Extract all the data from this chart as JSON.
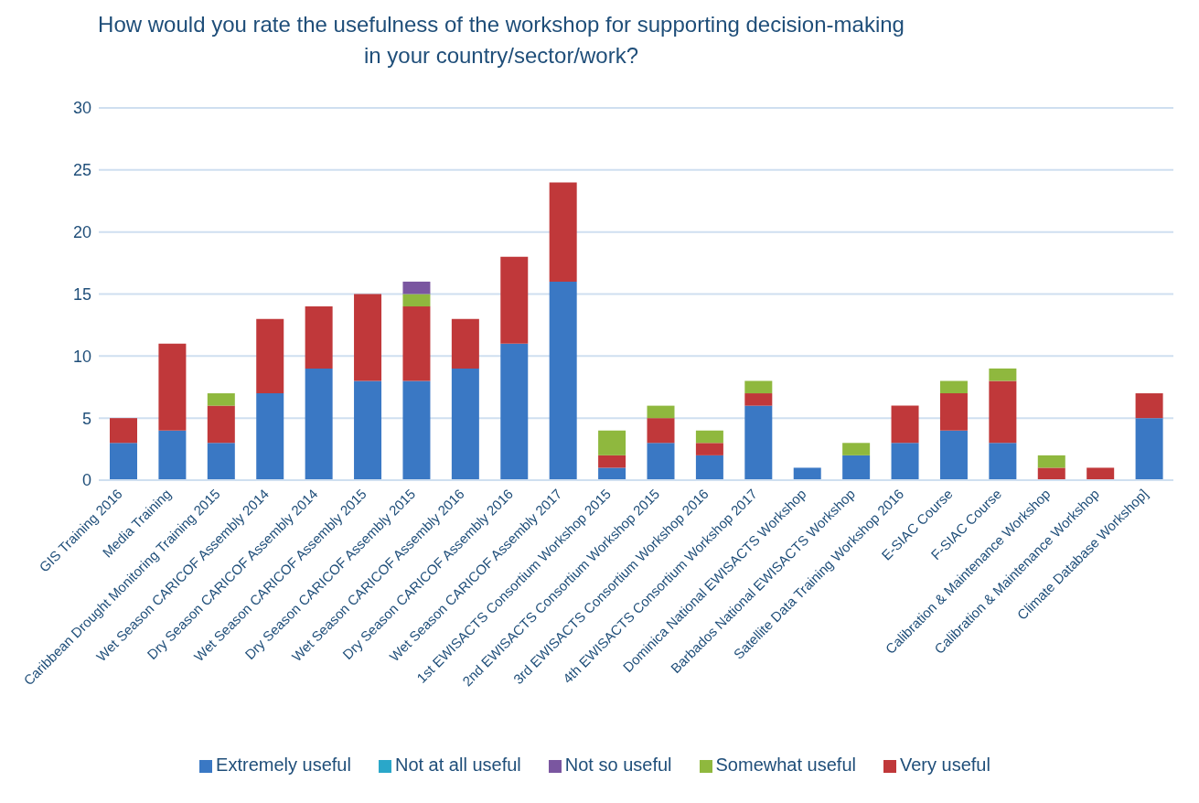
{
  "chart_data": {
    "type": "bar",
    "stacked": true,
    "title": "How would you rate the usefulness of the workshop for supporting decision-making in your country/sector/work?",
    "categories": [
      "GIS Training 2016",
      "Media Training",
      "Caribbean Drought Monitoring Training 2015",
      "Wet Season CARICOF Assembly 2014",
      "Dry Season CARICOF Assembly 2014",
      "Wet Season CARICOF Assembly 2015",
      "Dry Season CARICOF Assembly 2015",
      "Wet Season CARICOF Assembly 2016",
      "Dry Season CARICOF Assembly 2016",
      "Wet Season CARICOF Assembly 2017",
      "1st EWISACTS Consortium Workshop 2015",
      "2nd EWISACTS Consortium Workshop 2015",
      "3rd EWISACTS Consortium Workshop 2016",
      "4th EWISACTS Consortium Workshop 2017",
      "Dominica National EWISACTS Workshop",
      "Barbados National EWISACTS Workshop",
      "Satellite Data Training Workshop 2016",
      "E-SIAC Course",
      "F-SIAC Course",
      "Calibration & Maintenance Workshop",
      "Calibration & Maintenance Workshop",
      "Climate Database Workshop]"
    ],
    "series": [
      {
        "name": "Extremely useful",
        "color": "#3a78c4",
        "values": [
          3,
          4,
          3,
          7,
          9,
          8,
          8,
          9,
          11,
          16,
          1,
          3,
          2,
          6,
          1,
          2,
          3,
          4,
          3,
          0,
          0,
          5
        ]
      },
      {
        "name": "Very useful",
        "color": "#c0383a",
        "values": [
          2,
          7,
          3,
          6,
          5,
          7,
          6,
          4,
          7,
          8,
          1,
          2,
          1,
          1,
          0,
          0,
          3,
          3,
          5,
          1,
          1,
          2
        ]
      },
      {
        "name": "Somewhat useful",
        "color": "#8fb83e",
        "values": [
          0,
          0,
          1,
          0,
          0,
          0,
          1,
          0,
          0,
          0,
          2,
          1,
          1,
          1,
          0,
          1,
          0,
          1,
          1,
          1,
          0,
          0
        ]
      },
      {
        "name": "Not so useful",
        "color": "#7a56a0",
        "values": [
          0,
          0,
          0,
          0,
          0,
          0,
          1,
          0,
          0,
          0,
          0,
          0,
          0,
          0,
          0,
          0,
          0,
          0,
          0,
          0,
          0,
          0
        ]
      },
      {
        "name": "Not at all useful",
        "color": "#2aa7c9",
        "values": [
          0,
          0,
          0,
          0,
          0,
          0,
          0,
          0,
          0,
          0,
          0,
          0,
          0,
          0,
          0,
          0,
          0,
          0,
          0,
          0,
          0,
          0
        ]
      }
    ],
    "ylim": [
      0,
      30
    ],
    "yticks": [
      0,
      5,
      10,
      15,
      20,
      25,
      30
    ],
    "grid": "y",
    "legend": "bottom"
  }
}
